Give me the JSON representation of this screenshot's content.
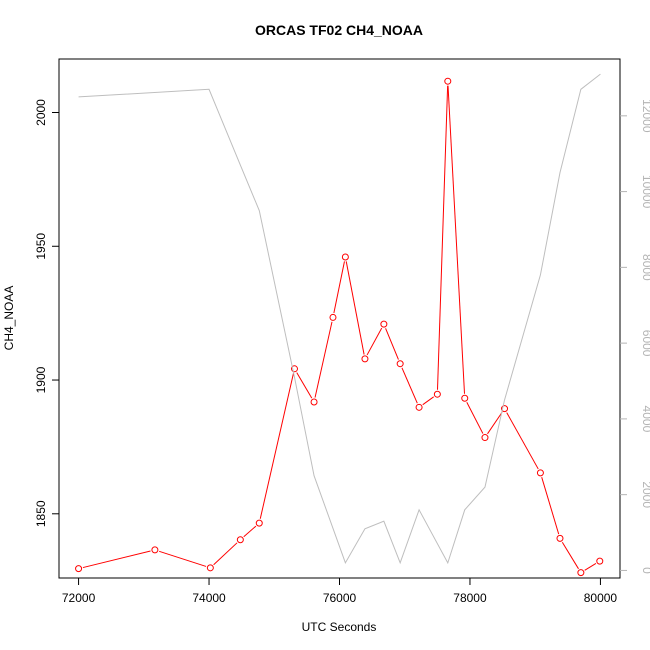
{
  "chart_data": {
    "type": "line",
    "title": "ORCAS TF02 CH4_NOAA",
    "xlabel": "UTC Seconds",
    "ylabel": "CH4_NOAA",
    "xlim": [
      71700,
      80300
    ],
    "ylim": [
      1826,
      2020
    ],
    "y2lim": [
      -200,
      13500
    ],
    "xticks": [
      72000,
      74000,
      76000,
      78000,
      80000
    ],
    "yticks": [
      1850,
      1900,
      1950,
      2000
    ],
    "y2ticks": [
      0,
      2000,
      4000,
      6000,
      8000,
      10000,
      12000
    ],
    "grid": false,
    "colors": {
      "primary": "#ff0000",
      "secondary": "#bebebe",
      "axis": "#000000",
      "secondary_axis": "#b4b4b4"
    },
    "series": [
      {
        "axis": "left",
        "style": "line+points",
        "x": [
          72000,
          73170,
          74020,
          74480,
          74770,
          75310,
          75610,
          75900,
          76090,
          76390,
          76680,
          76930,
          77220,
          77500,
          77660,
          77920,
          78230,
          78530,
          79080,
          79380,
          79700,
          79990
        ],
        "y": [
          1829.5,
          1836.5,
          1829.8,
          1840.3,
          1846.5,
          1904.2,
          1891.8,
          1923.4,
          1946,
          1907.9,
          1920.9,
          1906.1,
          1889.8,
          1894.7,
          2011.7,
          1893.2,
          1878.5,
          1889.3,
          1865.3,
          1840.8,
          1828,
          1832.3
        ]
      },
      {
        "axis": "right",
        "style": "line",
        "x": [
          72000,
          74000,
          74480,
          74770,
          75310,
          75610,
          76090,
          76390,
          76680,
          76930,
          77220,
          77660,
          77920,
          78230,
          78530,
          79080,
          79380,
          79700,
          80000
        ],
        "y": [
          12500,
          12700,
          10700,
          9500,
          5100,
          2500,
          200,
          1100,
          1300,
          200,
          1600,
          200,
          1600,
          2200,
          4500,
          7800,
          10500,
          12700,
          13100
        ]
      }
    ]
  }
}
